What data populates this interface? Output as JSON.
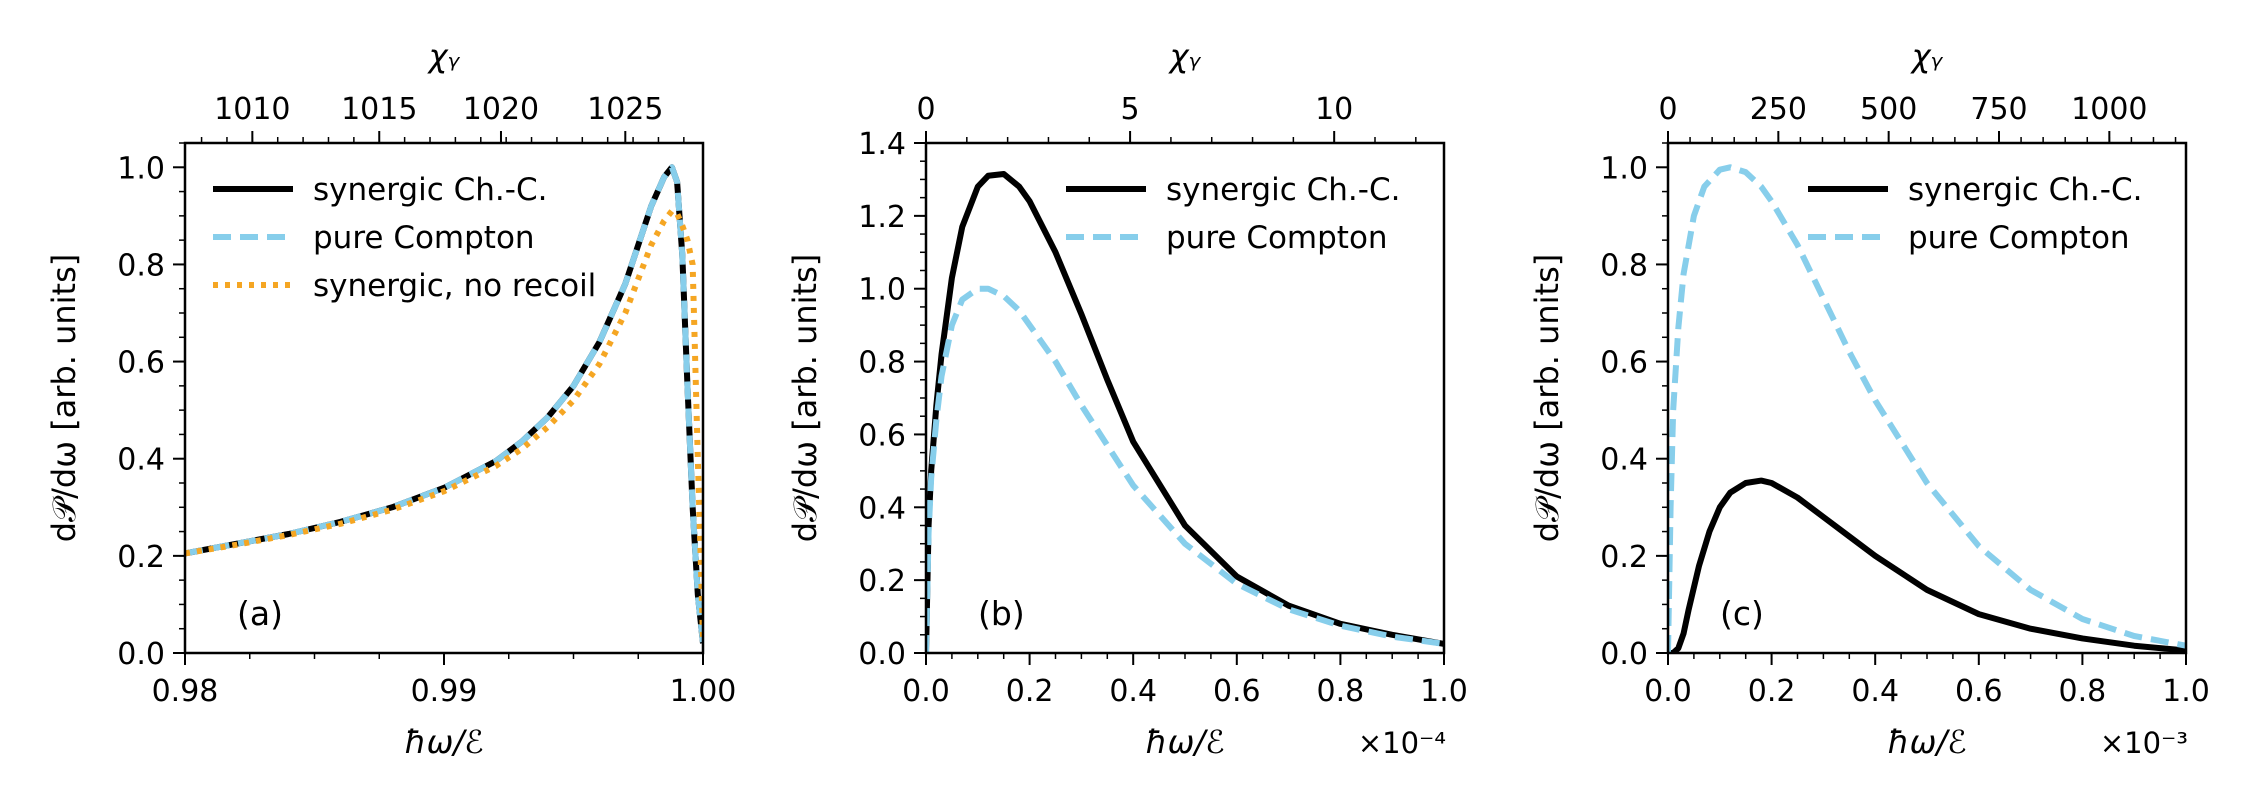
{
  "chart_data": [
    {
      "type": "line",
      "panel_label": "(a)",
      "xlabel": "ħω/ℰ",
      "ylabel": "d𝒫/dω [arb. units]",
      "x_multiplier": "",
      "xlim": [
        0.98,
        1.0
      ],
      "ylim": [
        0.0,
        1.05
      ],
      "x_ticks": [
        "0.98",
        "0.99",
        "1.00"
      ],
      "x_tick_values": [
        0.98,
        0.99,
        1.0
      ],
      "y_ticks": [
        "0.0",
        "0.2",
        "0.4",
        "0.6",
        "0.8",
        "1.0"
      ],
      "y_tick_values": [
        0.0,
        0.2,
        0.4,
        0.6,
        0.8,
        1.0
      ],
      "top_axis_label": "χᵧ",
      "top_ticks": [
        "1010",
        "1015",
        "1020",
        "1025"
      ],
      "top_tick_positions_x": [
        0.9826,
        0.9875,
        0.9922,
        0.997
      ],
      "legend_location": "upper-left",
      "series": [
        {
          "name": "synergic Ch.-C.",
          "color": "#000000",
          "style": "solid",
          "x": [
            0.98,
            0.982,
            0.984,
            0.986,
            0.988,
            0.99,
            0.992,
            0.993,
            0.994,
            0.995,
            0.996,
            0.997,
            0.9975,
            0.998,
            0.9985,
            0.9988,
            0.999,
            0.9992,
            0.9994,
            0.9996,
            0.9998,
            1.0
          ],
          "y": [
            0.205,
            0.225,
            0.245,
            0.27,
            0.3,
            0.34,
            0.395,
            0.435,
            0.485,
            0.55,
            0.64,
            0.76,
            0.84,
            0.92,
            0.98,
            1.0,
            0.97,
            0.82,
            0.55,
            0.3,
            0.12,
            0.02
          ]
        },
        {
          "name": "pure Compton",
          "color": "#87CEEB",
          "style": "dashed",
          "x": [
            0.98,
            0.982,
            0.984,
            0.986,
            0.988,
            0.99,
            0.992,
            0.993,
            0.994,
            0.995,
            0.996,
            0.997,
            0.9975,
            0.998,
            0.9985,
            0.9988,
            0.999,
            0.9992,
            0.9994,
            0.9996,
            0.9998,
            1.0
          ],
          "y": [
            0.205,
            0.225,
            0.245,
            0.27,
            0.3,
            0.34,
            0.395,
            0.435,
            0.485,
            0.55,
            0.64,
            0.76,
            0.84,
            0.92,
            0.98,
            1.0,
            0.97,
            0.82,
            0.55,
            0.3,
            0.12,
            0.02
          ]
        },
        {
          "name": "synergic, no recoil",
          "color": "#F5A623",
          "style": "dotted",
          "x": [
            0.98,
            0.982,
            0.984,
            0.986,
            0.988,
            0.99,
            0.992,
            0.993,
            0.994,
            0.995,
            0.996,
            0.997,
            0.9975,
            0.998,
            0.9985,
            0.9988,
            0.999,
            0.9992,
            0.9994,
            0.9996,
            0.9998,
            1.0
          ],
          "y": [
            0.205,
            0.223,
            0.243,
            0.266,
            0.295,
            0.333,
            0.385,
            0.42,
            0.465,
            0.52,
            0.595,
            0.7,
            0.77,
            0.84,
            0.89,
            0.91,
            0.905,
            0.88,
            0.85,
            0.8,
            0.4,
            0.03
          ]
        }
      ]
    },
    {
      "type": "line",
      "panel_label": "(b)",
      "xlabel": "ħω/ℰ",
      "ylabel": "d𝒫/dω [arb. units]",
      "x_multiplier": "×10⁻⁴",
      "xlim": [
        0.0,
        1.0
      ],
      "ylim": [
        0.0,
        1.4
      ],
      "x_ticks": [
        "0.0",
        "0.2",
        "0.4",
        "0.6",
        "0.8",
        "1.0"
      ],
      "x_tick_values": [
        0.0,
        0.2,
        0.4,
        0.6,
        0.8,
        1.0
      ],
      "y_ticks": [
        "0.0",
        "0.2",
        "0.4",
        "0.6",
        "0.8",
        "1.0",
        "1.2",
        "1.4"
      ],
      "y_tick_values": [
        0.0,
        0.2,
        0.4,
        0.6,
        0.8,
        1.0,
        1.2,
        1.4
      ],
      "top_axis_label": "χᵧ",
      "top_ticks": [
        "0",
        "5",
        "10"
      ],
      "top_tick_positions_x": [
        0.0,
        0.394,
        0.788
      ],
      "legend_location": "upper-right",
      "series": [
        {
          "name": "synergic Ch.-C.",
          "color": "#000000",
          "style": "solid",
          "x": [
            0.0,
            0.005,
            0.01,
            0.02,
            0.03,
            0.05,
            0.07,
            0.1,
            0.12,
            0.15,
            0.18,
            0.2,
            0.25,
            0.3,
            0.35,
            0.4,
            0.5,
            0.6,
            0.7,
            0.8,
            0.9,
            1.0
          ],
          "y": [
            0.0,
            0.35,
            0.5,
            0.68,
            0.82,
            1.03,
            1.17,
            1.28,
            1.31,
            1.315,
            1.28,
            1.24,
            1.1,
            0.93,
            0.75,
            0.58,
            0.35,
            0.21,
            0.13,
            0.08,
            0.05,
            0.025
          ]
        },
        {
          "name": "pure Compton",
          "color": "#87CEEB",
          "style": "dashed",
          "x": [
            0.0,
            0.005,
            0.01,
            0.02,
            0.03,
            0.05,
            0.07,
            0.1,
            0.12,
            0.15,
            0.18,
            0.2,
            0.25,
            0.3,
            0.35,
            0.4,
            0.5,
            0.6,
            0.7,
            0.8,
            0.9,
            1.0
          ],
          "y": [
            0.0,
            0.33,
            0.48,
            0.64,
            0.76,
            0.9,
            0.97,
            1.0,
            1.0,
            0.98,
            0.94,
            0.9,
            0.8,
            0.68,
            0.57,
            0.46,
            0.3,
            0.19,
            0.12,
            0.075,
            0.045,
            0.025
          ]
        }
      ]
    },
    {
      "type": "line",
      "panel_label": "(c)",
      "xlabel": "ħω/ℰ",
      "ylabel": "d𝒫/dω [arb. units]",
      "x_multiplier": "×10⁻³",
      "xlim": [
        0.0,
        1.0
      ],
      "ylim": [
        0.0,
        1.05
      ],
      "x_ticks": [
        "0.0",
        "0.2",
        "0.4",
        "0.6",
        "0.8",
        "1.0"
      ],
      "x_tick_values": [
        0.0,
        0.2,
        0.4,
        0.6,
        0.8,
        1.0
      ],
      "y_ticks": [
        "0.0",
        "0.2",
        "0.4",
        "0.6",
        "0.8",
        "1.0"
      ],
      "y_tick_values": [
        0.0,
        0.2,
        0.4,
        0.6,
        0.8,
        1.0
      ],
      "top_axis_label": "χᵧ",
      "top_ticks": [
        "0",
        "250",
        "500",
        "750",
        "1000"
      ],
      "top_tick_positions_x": [
        0.0,
        0.213,
        0.426,
        0.639,
        0.852
      ],
      "legend_location": "upper-right",
      "series": [
        {
          "name": "synergic Ch.-C.",
          "color": "#000000",
          "style": "solid",
          "x": [
            0.0,
            0.01,
            0.02,
            0.03,
            0.04,
            0.06,
            0.08,
            0.1,
            0.12,
            0.15,
            0.18,
            0.2,
            0.25,
            0.3,
            0.35,
            0.4,
            0.5,
            0.6,
            0.7,
            0.8,
            0.9,
            1.0
          ],
          "y": [
            0.0,
            0.0,
            0.01,
            0.04,
            0.09,
            0.18,
            0.25,
            0.3,
            0.33,
            0.35,
            0.355,
            0.35,
            0.32,
            0.28,
            0.24,
            0.2,
            0.13,
            0.08,
            0.05,
            0.03,
            0.015,
            0.005
          ]
        },
        {
          "name": "pure Compton",
          "color": "#87CEEB",
          "style": "dashed",
          "x": [
            0.0,
            0.005,
            0.01,
            0.02,
            0.03,
            0.05,
            0.07,
            0.1,
            0.12,
            0.15,
            0.18,
            0.2,
            0.25,
            0.3,
            0.35,
            0.4,
            0.5,
            0.6,
            0.7,
            0.8,
            0.9,
            1.0
          ],
          "y": [
            0.0,
            0.3,
            0.5,
            0.67,
            0.78,
            0.9,
            0.96,
            0.995,
            1.0,
            0.99,
            0.96,
            0.93,
            0.84,
            0.73,
            0.62,
            0.52,
            0.35,
            0.22,
            0.13,
            0.07,
            0.035,
            0.015
          ]
        }
      ]
    }
  ]
}
